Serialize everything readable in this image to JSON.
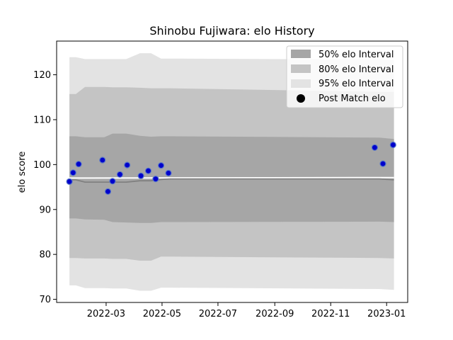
{
  "chart_data": {
    "type": "area",
    "title": "Shinobu Fujiwara: elo History",
    "xlabel": "",
    "ylabel": "elo score",
    "xlim": [
      "2022-01-06",
      "2023-01-24"
    ],
    "ylim": [
      69.3,
      127.5
    ],
    "x_ticks": [
      "2022-03",
      "2022-05",
      "2022-07",
      "2022-09",
      "2022-11",
      "2023-01"
    ],
    "y_ticks": [
      70,
      80,
      90,
      100,
      110,
      120
    ],
    "grid": false,
    "legend": {
      "placement": "top-right",
      "entries": [
        "50% elo Interval",
        "80% elo Interval",
        "95% elo Interval",
        "Post Match elo"
      ]
    },
    "colors": {
      "band50": "#a6a6a6",
      "band80": "#c4c4c4",
      "band95": "#e3e3e3",
      "mean_line": "#808080",
      "prior_line": "#ffffff",
      "point_fill": "#0000cc",
      "point_edge": "#5a78c8"
    },
    "bands": {
      "x": [
        "2022-01-20",
        "2022-01-27",
        "2022-02-06",
        "2022-02-27",
        "2022-03-08",
        "2022-03-23",
        "2022-04-07",
        "2022-04-19",
        "2022-04-30",
        "2022-05-10",
        "2022-12-24",
        "2023-01-09"
      ],
      "mean": [
        96.6,
        96.6,
        96.1,
        96.1,
        96.1,
        96.1,
        96.4,
        96.4,
        96.7,
        96.8,
        96.8,
        96.6
      ],
      "lo50": [
        88.0,
        88.0,
        87.8,
        87.7,
        87.2,
        87.1,
        87.0,
        87.0,
        87.2,
        87.2,
        87.3,
        87.2
      ],
      "hi50": [
        106.3,
        106.3,
        106.1,
        106.1,
        106.9,
        106.9,
        106.4,
        106.2,
        106.3,
        106.3,
        106.0,
        105.7
      ],
      "lo80": [
        79.2,
        79.2,
        79.1,
        79.1,
        79.0,
        79.0,
        78.6,
        78.6,
        79.5,
        79.5,
        79.2,
        79.1
      ],
      "hi80": [
        115.7,
        115.7,
        117.3,
        117.3,
        117.2,
        117.2,
        117.1,
        117.0,
        117.0,
        117.0,
        116.2,
        116.2
      ],
      "lo95": [
        73.1,
        73.1,
        72.5,
        72.5,
        72.4,
        72.4,
        71.9,
        71.9,
        72.6,
        72.6,
        72.3,
        72.1
      ],
      "hi95": [
        123.9,
        123.9,
        123.5,
        123.5,
        123.5,
        123.5,
        124.8,
        124.8,
        123.6,
        123.6,
        123.4,
        123.3
      ]
    },
    "prior": {
      "x": [
        "2022-01-20",
        "2023-01-09"
      ],
      "y": [
        97.0,
        97.1
      ]
    },
    "series": [
      {
        "name": "Post Match elo",
        "points": [
          {
            "x": "2022-01-20",
            "y": 96.2
          },
          {
            "x": "2022-01-24",
            "y": 98.2
          },
          {
            "x": "2022-01-30",
            "y": 100.1
          },
          {
            "x": "2022-02-25",
            "y": 101.0
          },
          {
            "x": "2022-03-03",
            "y": 94.0
          },
          {
            "x": "2022-03-08",
            "y": 96.3
          },
          {
            "x": "2022-03-16",
            "y": 97.8
          },
          {
            "x": "2022-03-24",
            "y": 99.9
          },
          {
            "x": "2022-04-08",
            "y": 97.5
          },
          {
            "x": "2022-04-16",
            "y": 98.6
          },
          {
            "x": "2022-04-24",
            "y": 96.8
          },
          {
            "x": "2022-04-30",
            "y": 99.8
          },
          {
            "x": "2022-05-08",
            "y": 98.1
          },
          {
            "x": "2022-12-19",
            "y": 103.8
          },
          {
            "x": "2022-12-28",
            "y": 100.2
          },
          {
            "x": "2023-01-08",
            "y": 104.4
          }
        ]
      }
    ]
  }
}
